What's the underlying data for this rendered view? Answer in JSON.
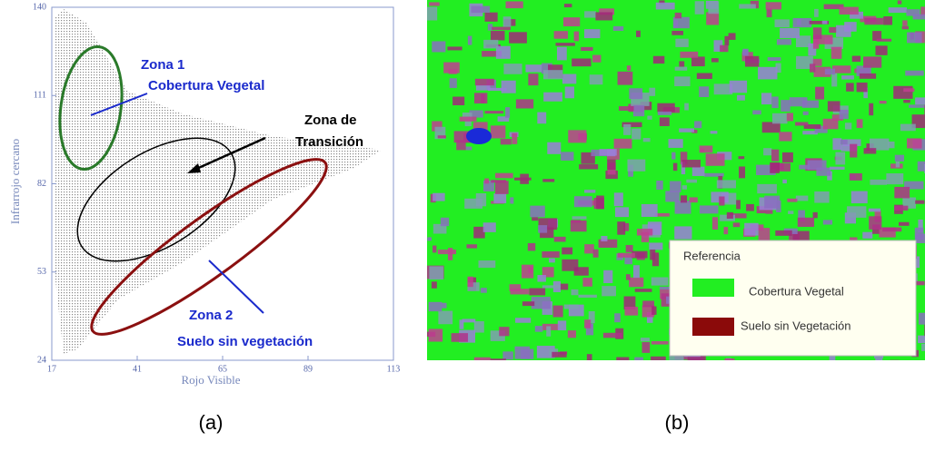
{
  "chart_data": {
    "type": "scatter",
    "x_label": "Rojo Visible",
    "y_label": "Infrarrojo cercano",
    "xlim": [
      17,
      113
    ],
    "xticks": [
      17,
      41,
      65,
      89,
      113
    ],
    "ylim": [
      24,
      140
    ],
    "yticks": [
      24,
      53,
      82,
      111,
      140
    ],
    "annotations": [
      "Zona 1",
      "Cobertura Vegetal",
      "Zona de",
      "Transición",
      "Zona 2",
      "Suelo sin vegetación"
    ],
    "caption": "(a)"
  },
  "image_panel": {
    "legend_title": "Referencia",
    "legend": [
      {
        "label": "Cobertura Vegetal",
        "color": "#22ee22"
      },
      {
        "label": "Suelo sin Vegetación",
        "color": "#8b0a0a"
      }
    ],
    "caption": "(b)"
  }
}
